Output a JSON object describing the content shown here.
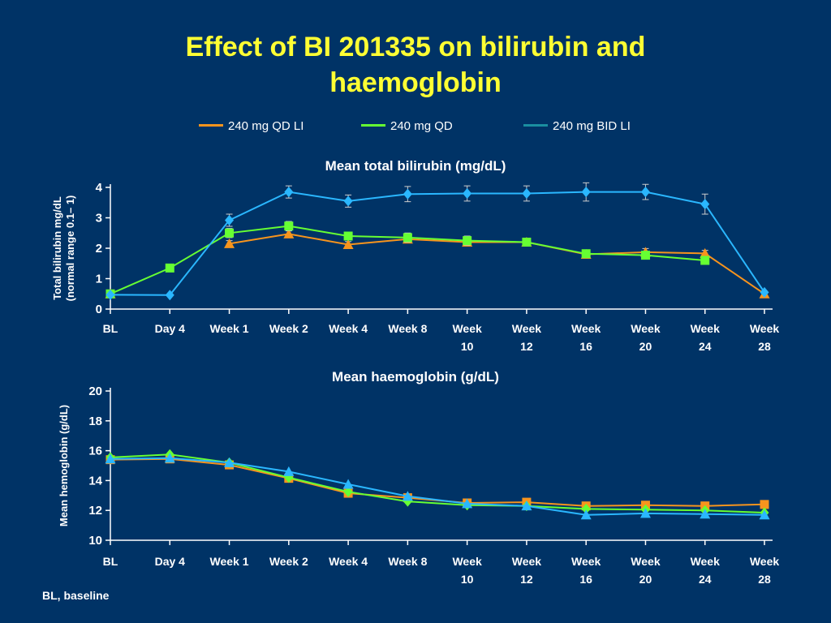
{
  "slide": {
    "title_line1": "Effect of BI 201335 on bilirubin and",
    "title_line2": "haemoglobin",
    "footnote": "BL, baseline"
  },
  "legend": [
    {
      "name": "240 mg QD LI",
      "color": "#f7941d"
    },
    {
      "name": "240 mg QD",
      "color": "#66ff33"
    },
    {
      "name": "240 mg BID LI",
      "color": "#1a8fa0"
    }
  ],
  "chart_data": [
    {
      "type": "line",
      "title": "Mean total bilirubin (mg/dL)",
      "ylabel_line1": "Total bilirubin mg/dL",
      "ylabel_line2": "(normal range 0.1– 1)",
      "ylim": [
        0,
        4
      ],
      "yticks": [
        "0",
        "1",
        "2",
        "3",
        "4"
      ],
      "categories": [
        [
          "BL"
        ],
        [
          "Day 4"
        ],
        [
          "Week 1"
        ],
        [
          "Week 2"
        ],
        [
          "Week 4"
        ],
        [
          "Week 8"
        ],
        [
          "Week",
          "10"
        ],
        [
          "Week",
          "12"
        ],
        [
          "Week",
          "16"
        ],
        [
          "Week",
          "20"
        ],
        [
          "Week",
          "24"
        ],
        [
          "Week",
          "28"
        ]
      ],
      "series": [
        {
          "name": "240 mg QD LI",
          "color": "#f7941d",
          "marker": "triangle",
          "values": [
            0.5,
            null,
            2.15,
            2.47,
            2.12,
            2.3,
            2.2,
            2.2,
            1.8,
            1.87,
            1.83,
            0.5
          ],
          "errors": [
            0,
            0,
            0.1,
            0.1,
            0.1,
            0.1,
            0.1,
            0.1,
            0.1,
            0.12,
            0.1,
            0
          ]
        },
        {
          "name": "240 mg QD",
          "color": "#66ff33",
          "marker": "square",
          "values": [
            0.5,
            1.35,
            2.5,
            2.73,
            2.4,
            2.35,
            2.25,
            2.2,
            1.82,
            1.77,
            1.6,
            null
          ],
          "errors": [
            0,
            0,
            0.15,
            0.15,
            0.12,
            0.15,
            0.15,
            0.12,
            0.12,
            0.12,
            0.1,
            0
          ]
        },
        {
          "name": "240 mg BID LI",
          "color": "#2ab7ff",
          "marker": "diamond",
          "values": [
            0.47,
            0.46,
            2.92,
            3.85,
            3.55,
            3.78,
            3.8,
            3.8,
            3.85,
            3.85,
            3.45,
            0.55
          ],
          "errors": [
            0,
            0,
            0.2,
            0.2,
            0.2,
            0.25,
            0.25,
            0.25,
            0.3,
            0.25,
            0.33,
            0
          ]
        }
      ]
    },
    {
      "type": "line",
      "title": "Mean haemoglobin (g/dL)",
      "ylabel_line1": "Mean hemoglobin (g/dL)",
      "ylabel_line2": "",
      "ylim": [
        10,
        20
      ],
      "yticks": [
        "10",
        "12",
        "14",
        "16",
        "18",
        "20"
      ],
      "categories": [
        [
          "BL"
        ],
        [
          "Day 4"
        ],
        [
          "Week 1"
        ],
        [
          "Week 2"
        ],
        [
          "Week 4"
        ],
        [
          "Week 8"
        ],
        [
          "Week",
          "10"
        ],
        [
          "Week",
          "12"
        ],
        [
          "Week",
          "16"
        ],
        [
          "Week",
          "20"
        ],
        [
          "Week",
          "24"
        ],
        [
          "Week",
          "28"
        ]
      ],
      "series": [
        {
          "name": "240 mg QD LI",
          "color": "#f7941d",
          "marker": "square",
          "values": [
            15.4,
            15.45,
            15.05,
            14.15,
            13.15,
            12.85,
            12.5,
            12.55,
            12.3,
            12.35,
            12.3,
            12.4
          ]
        },
        {
          "name": "240 mg QD",
          "color": "#66ff33",
          "marker": "diamond",
          "values": [
            15.55,
            15.75,
            15.2,
            14.2,
            13.25,
            12.6,
            12.35,
            12.3,
            12.1,
            12.05,
            12.0,
            11.85
          ]
        },
        {
          "name": "240 mg BID LI",
          "color": "#2ab7ff",
          "marker": "triangle",
          "values": [
            15.45,
            15.5,
            15.2,
            14.6,
            13.75,
            12.95,
            12.45,
            12.3,
            11.7,
            11.8,
            11.75,
            11.7
          ]
        }
      ]
    }
  ]
}
